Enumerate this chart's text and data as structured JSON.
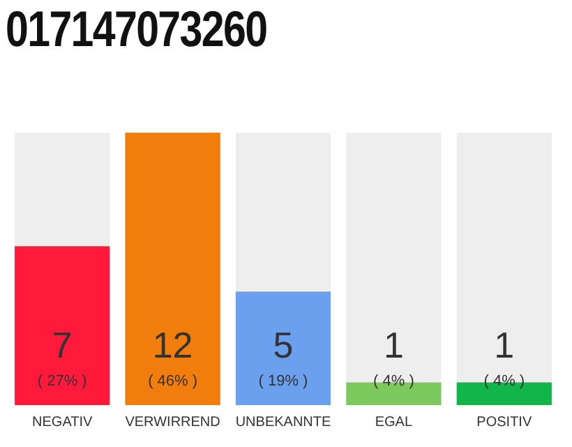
{
  "chart_data": {
    "type": "bar",
    "title": "017147073260",
    "categories": [
      "NEGATIV",
      "VERWIRREND",
      "UNBEKANNTE",
      "EGAL",
      "POSITIV"
    ],
    "values": [
      7,
      12,
      5,
      1,
      1
    ],
    "colors": [
      "#ff1a3c",
      "#f07d0c",
      "#6aa0ee",
      "#7dc95e",
      "#12b54a"
    ],
    "data_labels": true,
    "annotations": [
      "( 27% )",
      "( 46% )",
      "( 19% )",
      "( 4% )",
      "( 4% )"
    ],
    "grid": false,
    "legend": false
  }
}
